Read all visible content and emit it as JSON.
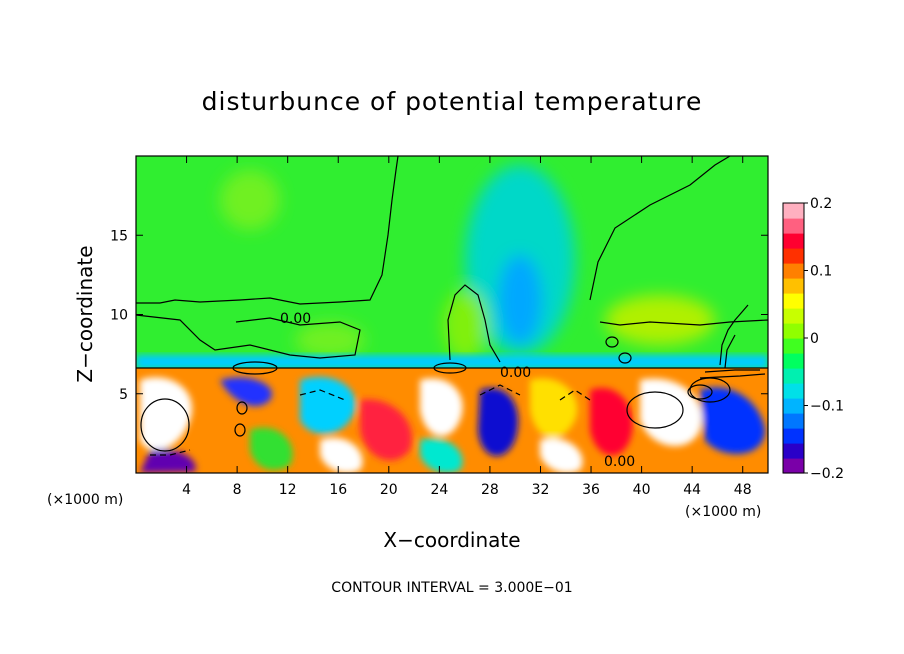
{
  "chart_data": {
    "type": "heatmap",
    "title": "disturbunce of potential temperature",
    "xlabel": "X−coordinate",
    "ylabel": "Z−coordinate",
    "x_unit": "(×1000 m)",
    "x_unit_right": "(×1000 m)",
    "xlim": [
      0,
      50
    ],
    "ylim": [
      0,
      20
    ],
    "x_ticks": [
      4,
      8,
      12,
      16,
      20,
      24,
      28,
      32,
      36,
      40,
      44,
      48
    ],
    "y_ticks": [
      5,
      10,
      15
    ],
    "colorbar": {
      "range": [
        -0.2,
        0.2
      ],
      "ticks": [
        {
          "value": 0.2,
          "label": "0.2"
        },
        {
          "value": 0.1,
          "label": "0.1"
        },
        {
          "value": 0,
          "label": "0"
        },
        {
          "value": -0.1,
          "label": "−0.1"
        },
        {
          "value": -0.2,
          "label": "−0.2"
        }
      ],
      "colors": [
        "#7a00a8",
        "#2a00c8",
        "#0033ff",
        "#0077ff",
        "#00b4ff",
        "#00e0e8",
        "#00f0b0",
        "#00ff60",
        "#40ff20",
        "#90ff00",
        "#c8ff00",
        "#ffff00",
        "#ffc000",
        "#ff8000",
        "#ff3000",
        "#ff0030",
        "#ff6080",
        "#ffb0c0"
      ]
    },
    "contour_labels": [
      "0.00",
      "0.00",
      "0.00"
    ],
    "footer": "CONTOUR INTERVAL = 3.000E−01"
  }
}
